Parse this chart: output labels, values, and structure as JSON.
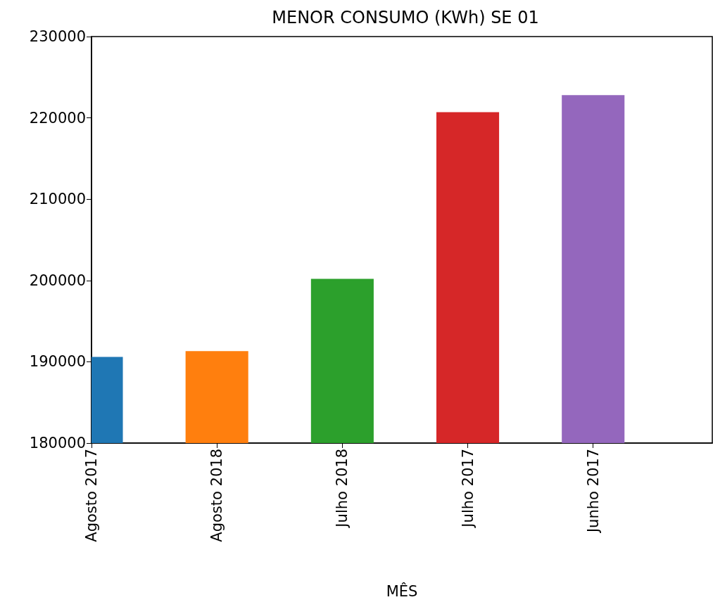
{
  "chart_data": {
    "type": "bar",
    "title": "MENOR CONSUMO (KWh) SE 01",
    "xlabel": "MÊS",
    "categories": [
      "Agosto 2017",
      "Agosto 2018",
      "Julho 2018",
      "Julho 2017",
      "Junho 2017"
    ],
    "values": [
      190600,
      191300,
      200200,
      220700,
      222800
    ],
    "colors": [
      "#1f77b4",
      "#ff7f0e",
      "#2ca02c",
      "#d62728",
      "#9467bd"
    ],
    "ylim": [
      180000,
      230000
    ],
    "yticks": [
      180000,
      190000,
      200000,
      210000,
      220000,
      230000
    ],
    "grid": false
  }
}
